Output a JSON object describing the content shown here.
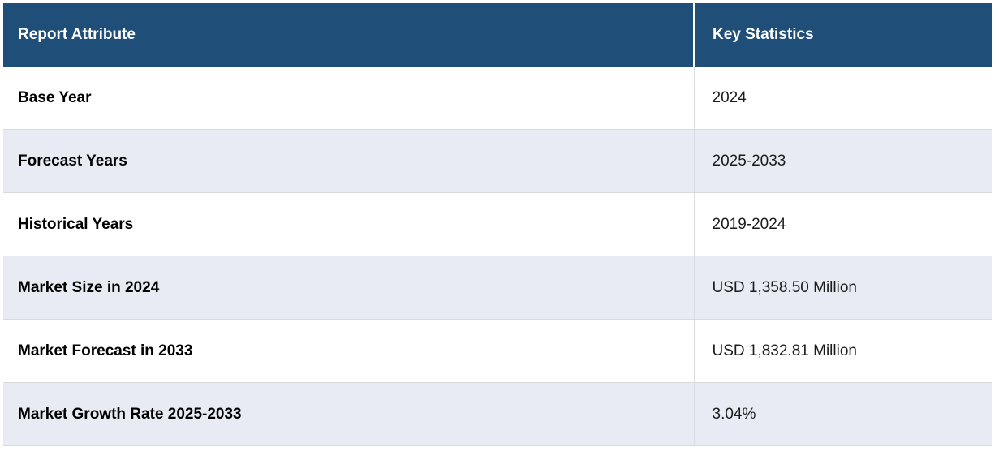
{
  "table": {
    "name": "report-key-statistics",
    "columns": [
      {
        "label": "Report Attribute"
      },
      {
        "label": "Key Statistics"
      }
    ],
    "rows": [
      {
        "attribute": "Base Year",
        "value": "2024"
      },
      {
        "attribute": "Forecast Years",
        "value": "2025-2033"
      },
      {
        "attribute": "Historical Years",
        "value": "2019-2024"
      },
      {
        "attribute": "Market Size in 2024",
        "value": "USD 1,358.50 Million"
      },
      {
        "attribute": "Market Forecast in 2033",
        "value": "USD 1,832.81 Million"
      },
      {
        "attribute": "Market Growth Rate 2025-2033",
        "value": "3.04%"
      }
    ]
  },
  "colors": {
    "header_bg": "#1f4e78",
    "header_text": "#ffffff",
    "row_bg": "#ffffff",
    "row_alt_bg": "#e8eaf4",
    "border": "#d9d9d9",
    "text": "#1b1b1b"
  }
}
